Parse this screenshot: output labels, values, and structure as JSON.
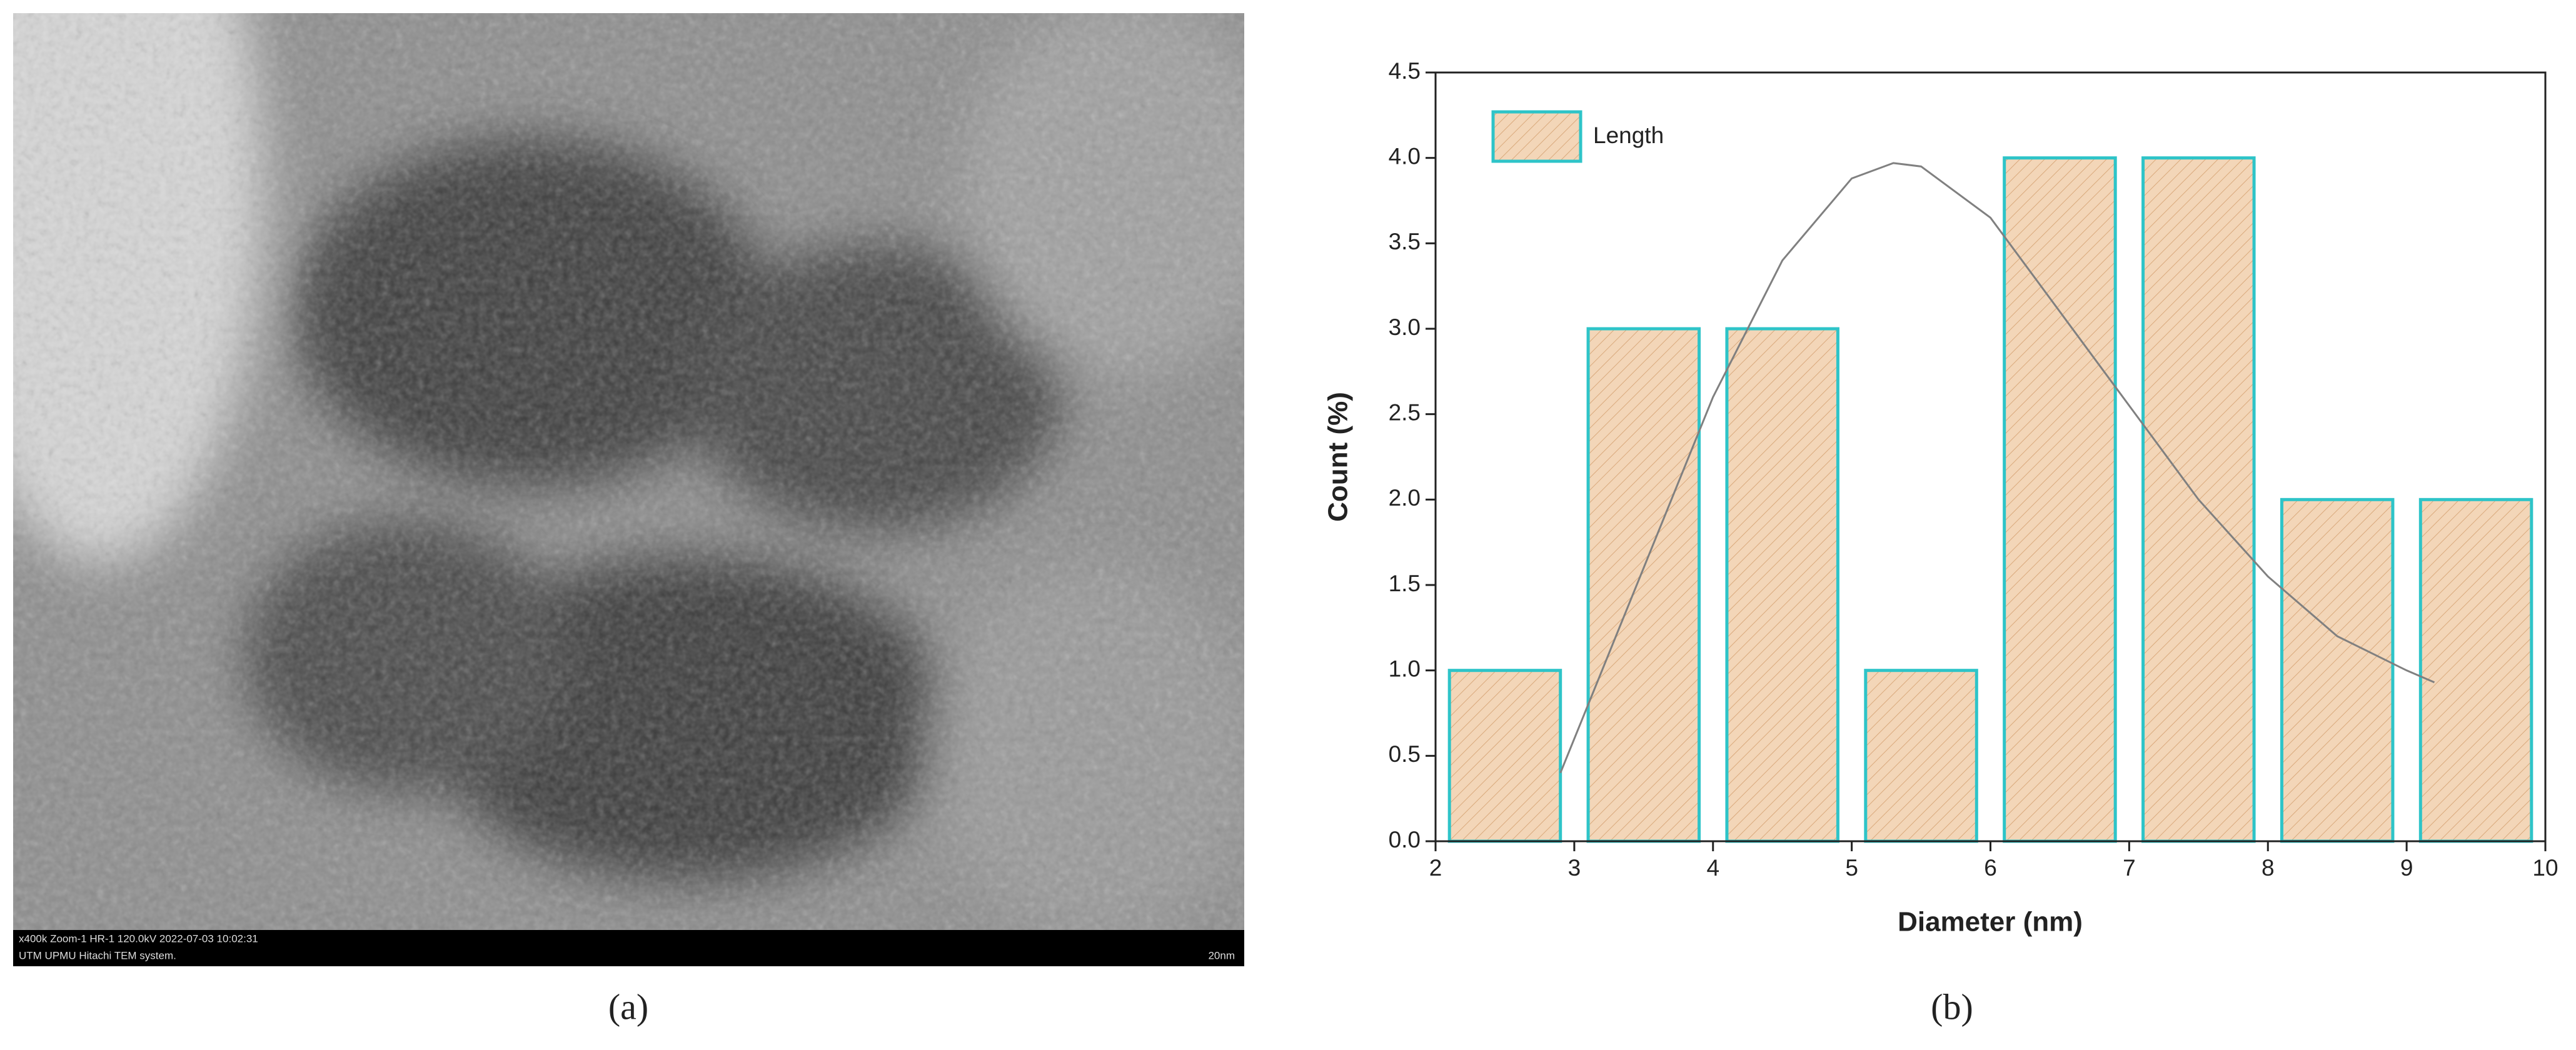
{
  "image": {
    "info_lines": [
      "x400k Zoom-1 HR-1 120.0kV 2022-07-03 10:02:31",
      "UTM UPMU Hitachi TEM system."
    ],
    "scale_bar": "20nm"
  },
  "panel_labels": [
    "(a)",
    "(b)"
  ],
  "chart_data": {
    "type": "histogram",
    "xlabel": "Diameter (nm)",
    "ylabel": "Count (%)",
    "bins": [
      2,
      3,
      4,
      5,
      6,
      7,
      8,
      9,
      10
    ],
    "series": [
      {
        "name": "Length",
        "color": "#f3d6b8",
        "edge_color": "#2ec4c8",
        "values": [
          1,
          3,
          3,
          1,
          4,
          4,
          2,
          2
        ]
      }
    ],
    "fit": {
      "color": "#808080",
      "x": [
        2.9,
        3.5,
        4,
        4.5,
        5,
        5.3,
        5.5,
        6,
        6.5,
        7,
        7.5,
        8,
        8.5,
        9,
        9.2
      ],
      "values": [
        0.4,
        1.6,
        2.6,
        3.4,
        3.88,
        3.97,
        3.95,
        3.65,
        3.1,
        2.55,
        2.0,
        1.55,
        1.2,
        1.0,
        0.93
      ]
    },
    "xlim": [
      2,
      10
    ],
    "xticks": [
      2,
      3,
      4,
      5,
      6,
      7,
      8,
      9,
      10
    ],
    "ylim": [
      0,
      4.5
    ],
    "yticks": [
      {
        "value": 0,
        "label": "0.0"
      },
      0.5,
      {
        "value": 1,
        "label": "1.0"
      },
      1.5,
      {
        "value": 2,
        "label": "2.0"
      },
      2.5,
      {
        "value": 3,
        "label": "3.0"
      },
      3.5,
      {
        "value": 4,
        "label": "4.0"
      },
      4.5
    ],
    "legend": "upper left"
  }
}
